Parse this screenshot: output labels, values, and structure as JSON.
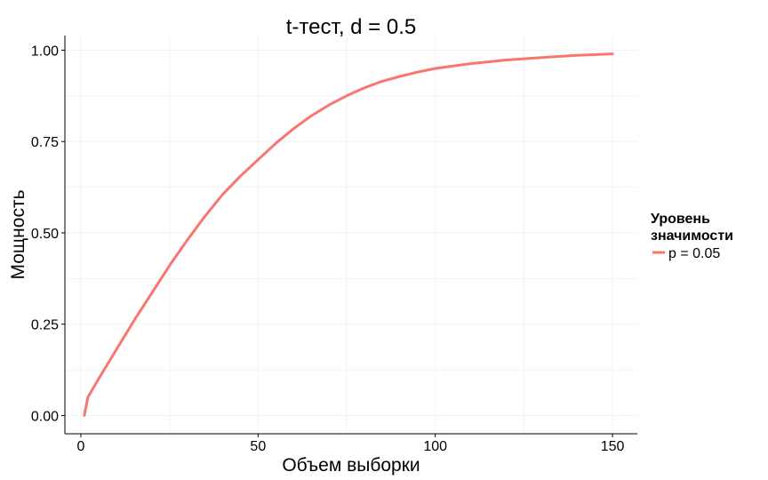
{
  "chart_data": {
    "type": "line",
    "title": "t-тест, d = 0.5",
    "xlabel": "Объем выборки",
    "ylabel": "Мощность",
    "xlim": [
      -4.5,
      157
    ],
    "ylim": [
      -0.05,
      1.04
    ],
    "x_ticks": [
      0,
      50,
      100,
      150
    ],
    "y_ticks": [
      0.0,
      0.25,
      0.5,
      0.75,
      1.0
    ],
    "x_tick_labels": [
      "0",
      "50",
      "100",
      "150"
    ],
    "y_tick_labels": [
      "0.00",
      "0.25",
      "0.50",
      "0.75",
      "1.00"
    ],
    "grid": true,
    "legend": {
      "title_lines": [
        "Уровень",
        "значимости"
      ],
      "position": "right"
    },
    "series": [
      {
        "name": "p = 0.05",
        "color": "#F8766D",
        "x": [
          1,
          2,
          5,
          10,
          15,
          20,
          25,
          30,
          35,
          40,
          45,
          50,
          55,
          60,
          65,
          70,
          75,
          80,
          85,
          90,
          95,
          100,
          110,
          120,
          130,
          140,
          150
        ],
        "y": [
          0.0,
          0.05,
          0.1,
          0.18,
          0.26,
          0.335,
          0.41,
          0.48,
          0.545,
          0.605,
          0.655,
          0.7,
          0.745,
          0.785,
          0.82,
          0.85,
          0.875,
          0.897,
          0.915,
          0.928,
          0.94,
          0.95,
          0.963,
          0.973,
          0.98,
          0.986,
          0.99
        ]
      }
    ]
  }
}
